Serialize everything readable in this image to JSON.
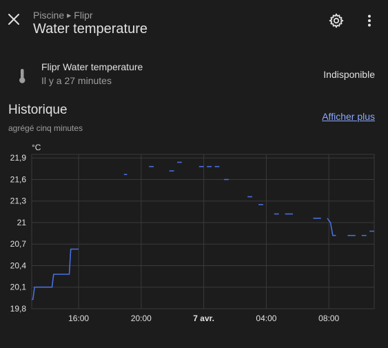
{
  "header": {
    "breadcrumb": [
      "Piscine",
      "Flipr"
    ],
    "title": "Water temperature",
    "icons": {
      "close": "close-icon",
      "settings": "gear-icon",
      "more": "more-vertical-icon"
    }
  },
  "entity": {
    "icon": "thermometer-icon",
    "name": "Flipr Water temperature",
    "last_changed": "Il y a 27 minutes",
    "state": "Indisponible"
  },
  "history": {
    "title": "Historique",
    "subtitle": "agrégé cinq minutes",
    "show_more": "Afficher plus"
  },
  "colors": {
    "series": "#4a6fe0",
    "grid": "#3a3a3a",
    "background": "#1c1c1c"
  },
  "chart_data": {
    "type": "line",
    "unit": "°C",
    "y_ticks": [
      "19,8",
      "20,1",
      "20,4",
      "20,7",
      "21",
      "21,3",
      "21,6",
      "21,9"
    ],
    "y_tick_values": [
      19.8,
      20.1,
      20.4,
      20.7,
      21.0,
      21.3,
      21.6,
      21.9
    ],
    "ylim": [
      19.8,
      21.95
    ],
    "xlim_hours": [
      13.0,
      34.9
    ],
    "x_ticks": [
      {
        "label": "16:00",
        "hour": 16,
        "bold": false
      },
      {
        "label": "20:00",
        "hour": 20,
        "bold": false
      },
      {
        "label": "7 avr.",
        "hour": 24,
        "bold": true
      },
      {
        "label": "04:00",
        "hour": 28,
        "bold": false
      },
      {
        "label": "08:00",
        "hour": 32,
        "bold": false
      }
    ],
    "grid": true,
    "series": [
      {
        "segments": [
          [
            [
              13.0,
              19.93
            ],
            [
              13.08,
              19.93
            ],
            [
              13.18,
              20.1
            ],
            [
              14.3,
              20.1
            ],
            [
              14.4,
              20.28
            ],
            [
              15.4,
              20.28
            ],
            [
              15.5,
              20.63
            ],
            [
              16.0,
              20.63
            ]
          ],
          [
            [
              18.9,
              21.67
            ],
            [
              19.1,
              21.67
            ]
          ],
          [
            [
              20.5,
              21.78
            ],
            [
              20.8,
              21.78
            ]
          ],
          [
            [
              21.8,
              21.72
            ],
            [
              22.1,
              21.72
            ]
          ],
          [
            [
              22.3,
              21.84
            ],
            [
              22.6,
              21.84
            ]
          ],
          [
            [
              23.7,
              21.78
            ],
            [
              24.0,
              21.78
            ]
          ],
          [
            [
              24.2,
              21.78
            ],
            [
              24.5,
              21.78
            ]
          ],
          [
            [
              24.7,
              21.78
            ],
            [
              25.0,
              21.78
            ]
          ],
          [
            [
              25.3,
              21.6
            ],
            [
              25.6,
              21.6
            ]
          ],
          [
            [
              26.8,
              21.36
            ],
            [
              27.1,
              21.36
            ]
          ],
          [
            [
              27.5,
              21.25
            ],
            [
              27.8,
              21.25
            ]
          ],
          [
            [
              28.5,
              21.12
            ],
            [
              28.8,
              21.12
            ]
          ],
          [
            [
              29.2,
              21.12
            ],
            [
              29.7,
              21.12
            ]
          ],
          [
            [
              31.0,
              21.06
            ],
            [
              31.5,
              21.06
            ]
          ],
          [
            [
              31.9,
              21.06
            ],
            [
              32.1,
              21.0
            ],
            [
              32.25,
              20.82
            ],
            [
              32.45,
              20.82
            ]
          ],
          [
            [
              33.2,
              20.82
            ],
            [
              33.7,
              20.82
            ]
          ],
          [
            [
              34.1,
              20.82
            ],
            [
              34.4,
              20.82
            ]
          ],
          [
            [
              34.6,
              20.88
            ],
            [
              34.9,
              20.88
            ]
          ]
        ]
      }
    ]
  }
}
